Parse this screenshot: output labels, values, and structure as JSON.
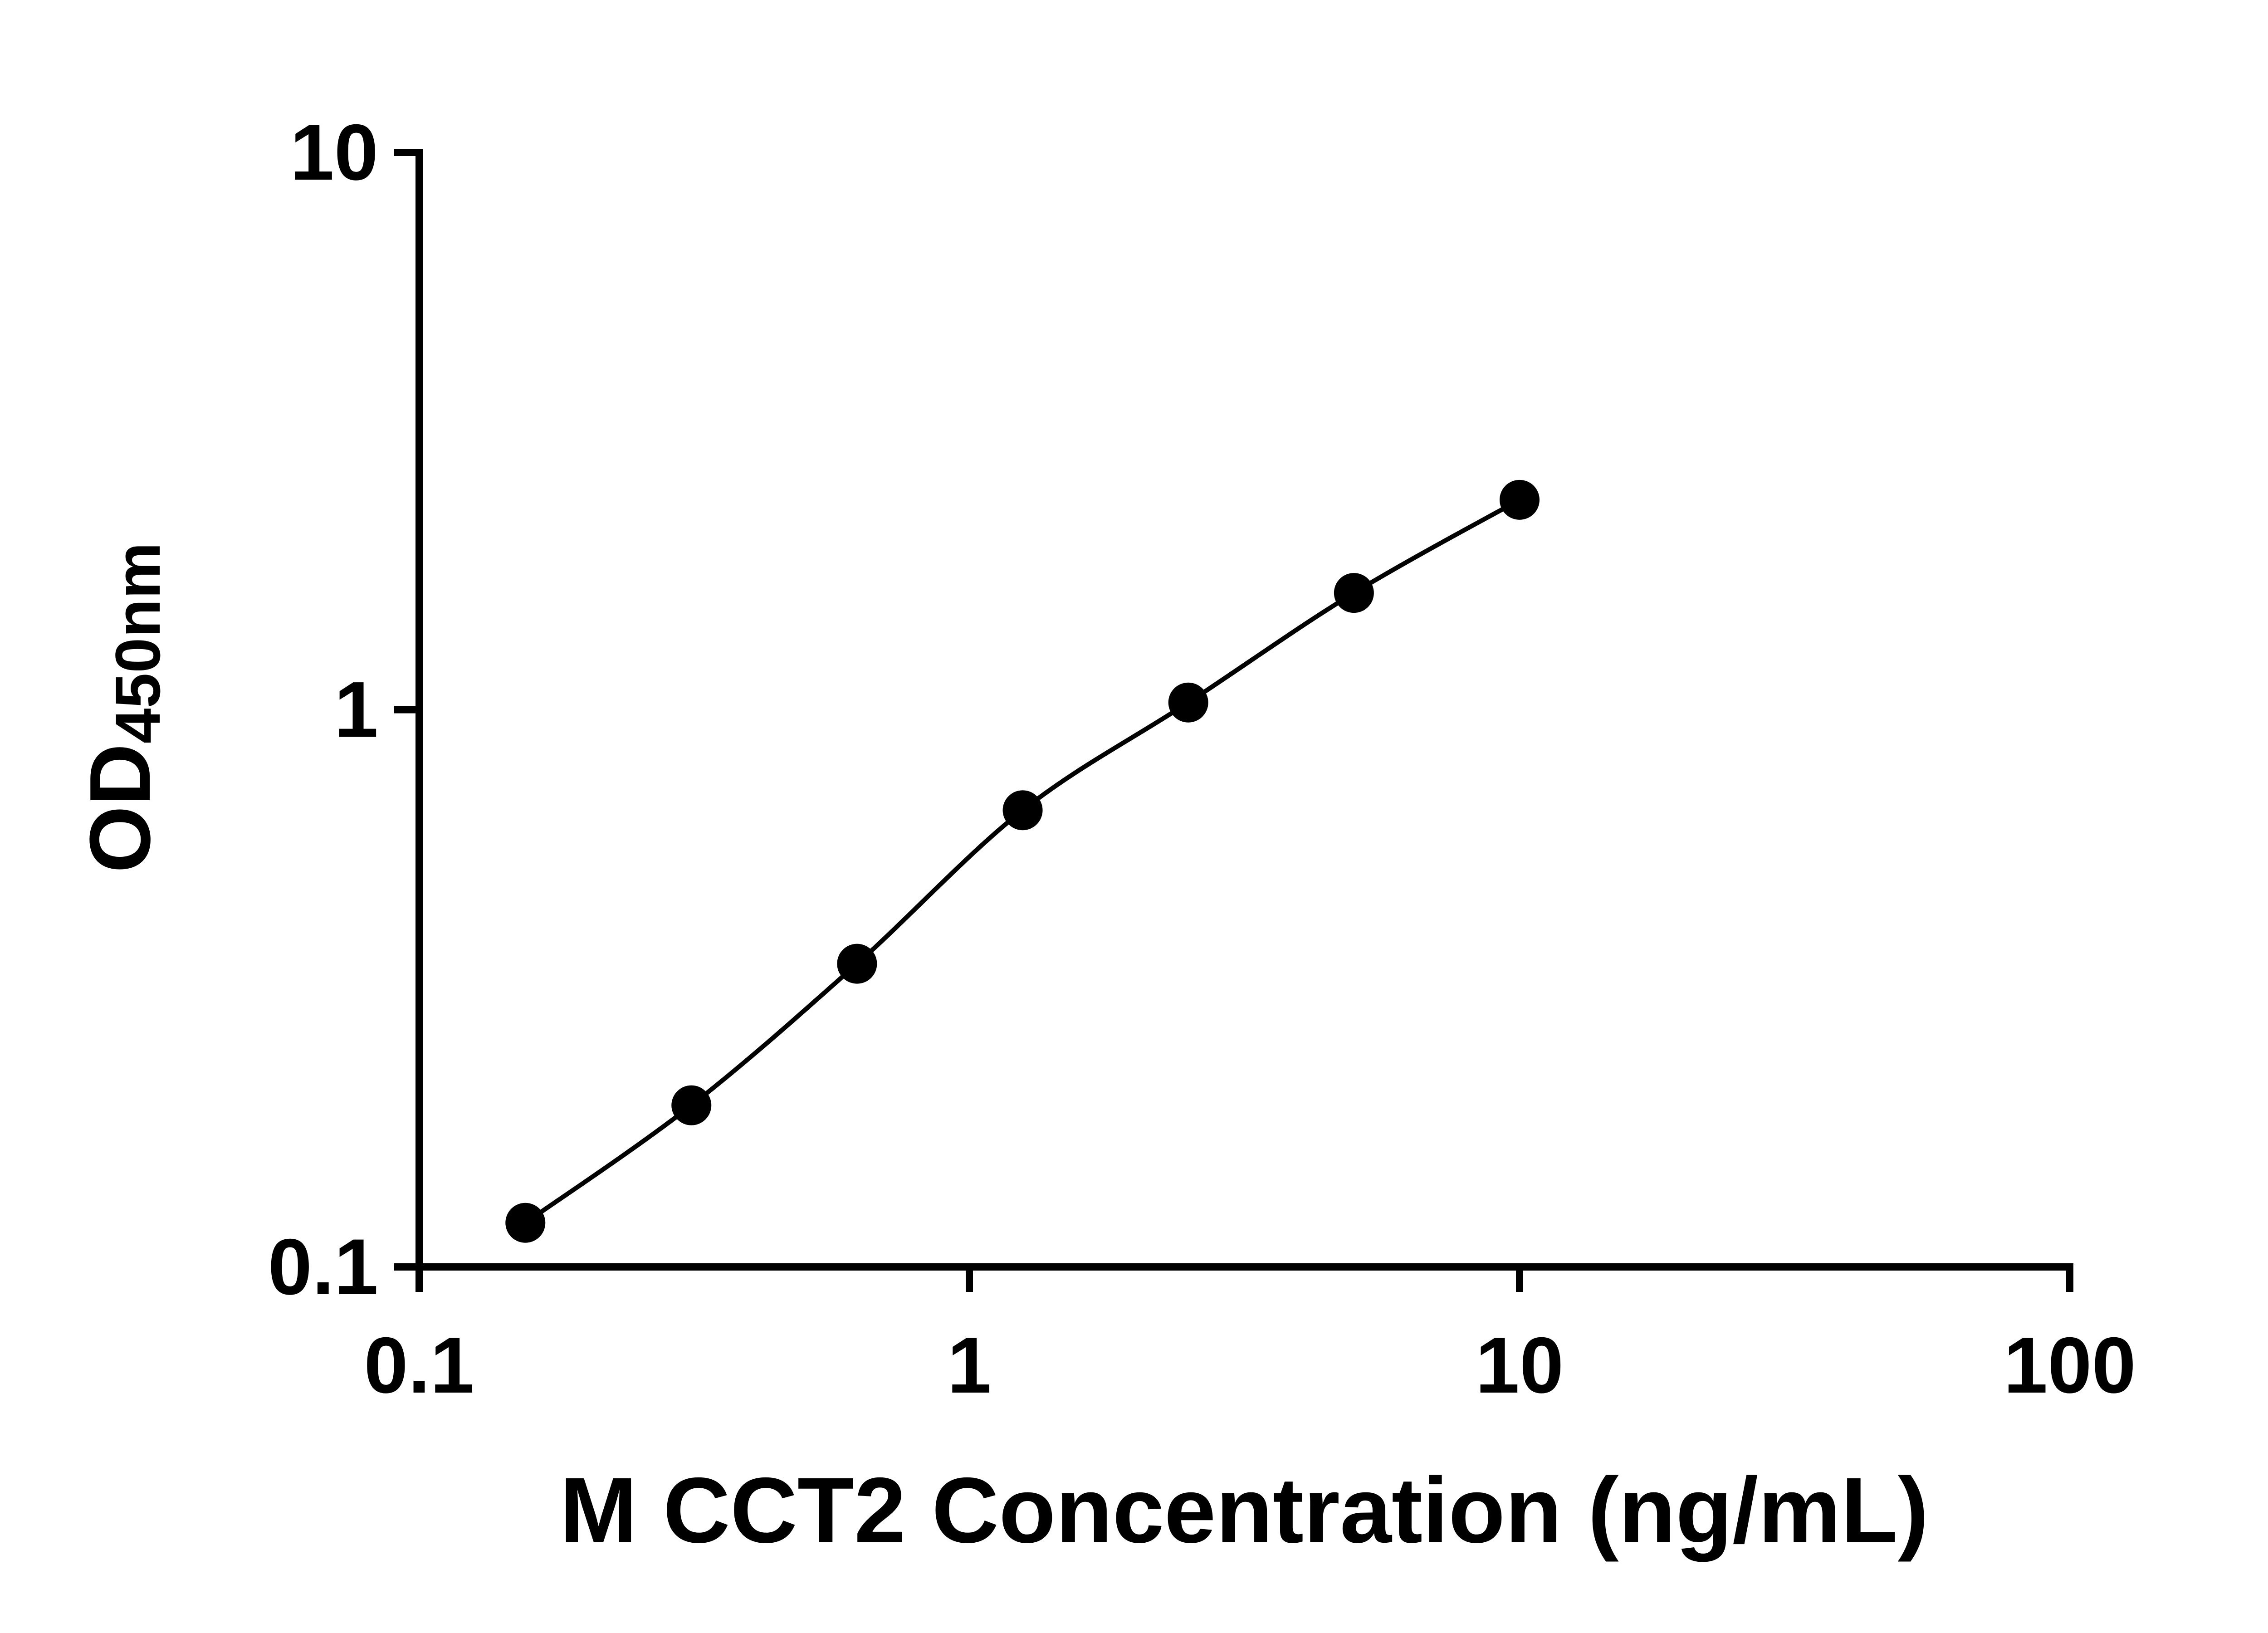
{
  "chart_data": {
    "type": "scatter",
    "title": "",
    "xlabel": "M CCT2 Concentration (ng/mL)",
    "ylabel_main": "OD",
    "ylabel_sub": "450nm",
    "x": [
      0.156,
      0.3125,
      0.625,
      1.25,
      2.5,
      5,
      10
    ],
    "y": [
      0.12,
      0.195,
      0.35,
      0.66,
      1.03,
      1.62,
      2.38
    ],
    "xscale": "log",
    "yscale": "log",
    "xlim": [
      0.1,
      100
    ],
    "ylim": [
      0.1,
      10
    ],
    "x_ticks": [
      0.1,
      1,
      10,
      100
    ],
    "x_tick_labels": [
      "0.1",
      "1",
      "10",
      "100"
    ],
    "y_ticks": [
      0.1,
      1,
      10
    ],
    "y_tick_labels": [
      "0.1",
      "1",
      "10"
    ],
    "grid": false,
    "legend": null,
    "marker_shape": "circle",
    "marker_color": "#000000",
    "line_color": "#000000",
    "axis_color": "#000000",
    "background_color": "#ffffff"
  }
}
